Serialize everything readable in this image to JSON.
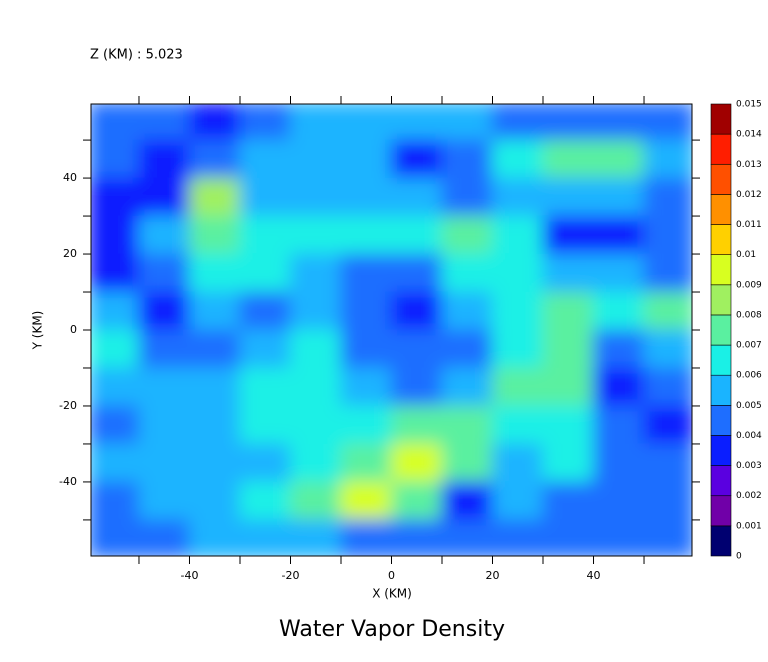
{
  "chart_data": {
    "type": "contour",
    "title": "Water Vapor Density",
    "subtitle": "Z (KM) : 5.023",
    "x_label": "X (KM)",
    "y_label": "Y (KM)",
    "xlim": [
      -59.5,
      59.5
    ],
    "ylim": [
      -59.5,
      59.5
    ],
    "xticks": [
      -40,
      -20,
      0,
      20,
      40
    ],
    "yticks": [
      -40,
      -20,
      0,
      20,
      40
    ],
    "xminor_ticks": [
      -50,
      -30,
      -10,
      10,
      30,
      50
    ],
    "yminor_ticks": [
      -50,
      -30,
      -10,
      10,
      30,
      50
    ],
    "x": [
      -55,
      -45,
      -35,
      -25,
      -15,
      -5,
      5,
      15,
      25,
      35,
      45,
      55
    ],
    "y": [
      55,
      45,
      35,
      25,
      15,
      5,
      -5,
      -15,
      -25,
      -35,
      -45,
      -55
    ],
    "z": [
      [
        0.0045,
        0.0045,
        0.0035,
        0.0045,
        0.0055,
        0.0055,
        0.0055,
        0.0055,
        0.0045,
        0.0045,
        0.0045,
        0.0045
      ],
      [
        0.0045,
        0.0035,
        0.0045,
        0.0055,
        0.0055,
        0.0055,
        0.0035,
        0.0045,
        0.0065,
        0.0075,
        0.0075,
        0.0055
      ],
      [
        0.0035,
        0.0035,
        0.0085,
        0.0055,
        0.0055,
        0.0055,
        0.0055,
        0.0045,
        0.0055,
        0.0055,
        0.0055,
        0.0045
      ],
      [
        0.0035,
        0.0055,
        0.0075,
        0.0065,
        0.0065,
        0.0065,
        0.0065,
        0.0075,
        0.0065,
        0.0035,
        0.0035,
        0.0045
      ],
      [
        0.0035,
        0.0045,
        0.0065,
        0.0065,
        0.0055,
        0.0045,
        0.0045,
        0.0065,
        0.0065,
        0.0055,
        0.0055,
        0.0045
      ],
      [
        0.0055,
        0.0035,
        0.0055,
        0.0045,
        0.0055,
        0.0045,
        0.0035,
        0.0055,
        0.0065,
        0.0075,
        0.0065,
        0.0075
      ],
      [
        0.0065,
        0.0045,
        0.0045,
        0.0055,
        0.0065,
        0.0045,
        0.0045,
        0.0045,
        0.0065,
        0.0075,
        0.0045,
        0.0055
      ],
      [
        0.0055,
        0.0055,
        0.0055,
        0.0065,
        0.0065,
        0.0055,
        0.0045,
        0.0055,
        0.0075,
        0.0075,
        0.0035,
        0.0045
      ],
      [
        0.0045,
        0.0055,
        0.0055,
        0.0065,
        0.0065,
        0.0065,
        0.0075,
        0.0075,
        0.0065,
        0.0065,
        0.0045,
        0.0035
      ],
      [
        0.0055,
        0.0055,
        0.0055,
        0.0055,
        0.0065,
        0.0075,
        0.0095,
        0.0075,
        0.0055,
        0.0065,
        0.0045,
        0.0045
      ],
      [
        0.0045,
        0.0055,
        0.0055,
        0.0065,
        0.0075,
        0.0095,
        0.0075,
        0.0035,
        0.0055,
        0.0045,
        0.0045,
        0.0045
      ],
      [
        0.0045,
        0.0045,
        0.0055,
        0.0055,
        0.0055,
        0.0045,
        0.0045,
        0.0045,
        0.0045,
        0.0045,
        0.0045,
        0.0045
      ]
    ],
    "levels": [
      0,
      0.001,
      0.002,
      0.003,
      0.004,
      0.005,
      0.006,
      0.007,
      0.008,
      0.009,
      0.01,
      0.011,
      0.012,
      0.013,
      0.014,
      0.015
    ],
    "colors": [
      "#000070",
      "#7000a8",
      "#5a00e0",
      "#0a1eff",
      "#1e6eff",
      "#1ab4ff",
      "#1af0e6",
      "#5af0a0",
      "#a0f060",
      "#d8ff20",
      "#ffd000",
      "#ff9000",
      "#ff5000",
      "#ff1e00",
      "#a00000"
    ]
  }
}
